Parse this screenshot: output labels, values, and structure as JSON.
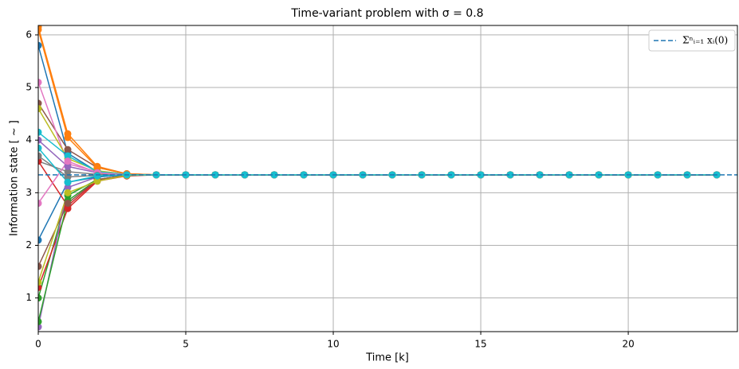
{
  "chart_data": {
    "type": "line",
    "title": "Time-variant problem with σ = 0.8",
    "x_label": "Time [k]",
    "y_label": "Information state [ ~ ]",
    "x": [
      0,
      1,
      2,
      3,
      4,
      5,
      6,
      7,
      8,
      9,
      10,
      11,
      12,
      13,
      14,
      15,
      16,
      17,
      18,
      19,
      20,
      21,
      22,
      23
    ],
    "xlim": [
      0,
      23.7
    ],
    "xticks": [
      0,
      5,
      10,
      15,
      20
    ],
    "ylim": [
      0.36,
      6.18
    ],
    "yticks": [
      1,
      2,
      3,
      4,
      5,
      6
    ],
    "grid": true,
    "legend": "upper right",
    "reference": {
      "name": "Σⁿᵢ₌₁ xᵢ(0)",
      "value": 3.34,
      "color": "#1f77b4",
      "style": "dashed"
    },
    "series": [
      {
        "color": "#1f77b4",
        "values": [
          5.8,
          3.75,
          3.4,
          3.35,
          3.34,
          3.34,
          3.34,
          3.34,
          3.34,
          3.34,
          3.34,
          3.34,
          3.34,
          3.34,
          3.34,
          3.34,
          3.34,
          3.34,
          3.34,
          3.34,
          3.34,
          3.34,
          3.34,
          3.34
        ]
      },
      {
        "color": "#ff7f0e",
        "values": [
          6.15,
          4.12,
          3.5,
          3.36,
          3.34,
          3.34,
          3.34,
          3.34,
          3.34,
          3.34,
          3.34,
          3.34,
          3.34,
          3.34,
          3.34,
          3.34,
          3.34,
          3.34,
          3.34,
          3.34,
          3.34,
          3.34,
          3.34,
          3.34
        ]
      },
      {
        "color": "#2ca02c",
        "values": [
          1.0,
          2.95,
          3.25,
          3.33,
          3.34,
          3.34,
          3.34,
          3.34,
          3.34,
          3.34,
          3.34,
          3.34,
          3.34,
          3.34,
          3.34,
          3.34,
          3.34,
          3.34,
          3.34,
          3.34,
          3.34,
          3.34,
          3.34,
          3.34
        ]
      },
      {
        "color": "#d62728",
        "values": [
          1.2,
          2.7,
          3.22,
          3.32,
          3.34,
          3.34,
          3.34,
          3.34,
          3.34,
          3.34,
          3.34,
          3.34,
          3.34,
          3.34,
          3.34,
          3.34,
          3.34,
          3.34,
          3.34,
          3.34,
          3.34,
          3.34,
          3.34,
          3.34
        ]
      },
      {
        "color": "#9467bd",
        "values": [
          0.45,
          3.1,
          3.3,
          3.34,
          3.34,
          3.34,
          3.34,
          3.34,
          3.34,
          3.34,
          3.34,
          3.34,
          3.34,
          3.34,
          3.34,
          3.34,
          3.34,
          3.34,
          3.34,
          3.34,
          3.34,
          3.34,
          3.34,
          3.34
        ]
      },
      {
        "color": "#8c564b",
        "values": [
          4.7,
          3.82,
          3.48,
          3.36,
          3.34,
          3.34,
          3.34,
          3.34,
          3.34,
          3.34,
          3.34,
          3.34,
          3.34,
          3.34,
          3.34,
          3.34,
          3.34,
          3.34,
          3.34,
          3.34,
          3.34,
          3.34,
          3.34,
          3.34
        ]
      },
      {
        "color": "#e377c2",
        "values": [
          5.1,
          3.55,
          3.4,
          3.35,
          3.34,
          3.34,
          3.34,
          3.34,
          3.34,
          3.34,
          3.34,
          3.34,
          3.34,
          3.34,
          3.34,
          3.34,
          3.34,
          3.34,
          3.34,
          3.34,
          3.34,
          3.34,
          3.34,
          3.34
        ]
      },
      {
        "color": "#7f7f7f",
        "values": [
          3.6,
          3.4,
          3.35,
          3.34,
          3.34,
          3.34,
          3.34,
          3.34,
          3.34,
          3.34,
          3.34,
          3.34,
          3.34,
          3.34,
          3.34,
          3.34,
          3.34,
          3.34,
          3.34,
          3.34,
          3.34,
          3.34,
          3.34,
          3.34
        ]
      },
      {
        "color": "#bcbd22",
        "values": [
          4.6,
          3.65,
          3.42,
          3.35,
          3.34,
          3.34,
          3.34,
          3.34,
          3.34,
          3.34,
          3.34,
          3.34,
          3.34,
          3.34,
          3.34,
          3.34,
          3.34,
          3.34,
          3.34,
          3.34,
          3.34,
          3.34,
          3.34,
          3.34
        ]
      },
      {
        "color": "#17becf",
        "values": [
          4.15,
          3.7,
          3.4,
          3.35,
          3.34,
          3.34,
          3.34,
          3.34,
          3.34,
          3.34,
          3.34,
          3.34,
          3.34,
          3.34,
          3.34,
          3.34,
          3.34,
          3.34,
          3.34,
          3.34,
          3.34,
          3.34,
          3.34,
          3.34
        ]
      },
      {
        "color": "#1f77b4",
        "values": [
          2.1,
          3.2,
          3.3,
          3.34,
          3.34,
          3.34,
          3.34,
          3.34,
          3.34,
          3.34,
          3.34,
          3.34,
          3.34,
          3.34,
          3.34,
          3.34,
          3.34,
          3.34,
          3.34,
          3.34,
          3.34,
          3.34,
          3.34,
          3.34
        ]
      },
      {
        "color": "#ff7f0e",
        "values": [
          6.1,
          4.05,
          3.48,
          3.36,
          3.34,
          3.34,
          3.34,
          3.34,
          3.34,
          3.34,
          3.34,
          3.34,
          3.34,
          3.34,
          3.34,
          3.34,
          3.34,
          3.34,
          3.34,
          3.34,
          3.34,
          3.34,
          3.34,
          3.34
        ]
      },
      {
        "color": "#2ca02c",
        "values": [
          0.55,
          2.85,
          3.25,
          3.33,
          3.34,
          3.34,
          3.34,
          3.34,
          3.34,
          3.34,
          3.34,
          3.34,
          3.34,
          3.34,
          3.34,
          3.34,
          3.34,
          3.34,
          3.34,
          3.34,
          3.34,
          3.34,
          3.34,
          3.34
        ]
      },
      {
        "color": "#d62728",
        "values": [
          3.6,
          2.75,
          3.24,
          3.33,
          3.34,
          3.34,
          3.34,
          3.34,
          3.34,
          3.34,
          3.34,
          3.34,
          3.34,
          3.34,
          3.34,
          3.34,
          3.34,
          3.34,
          3.34,
          3.34,
          3.34,
          3.34,
          3.34,
          3.34
        ]
      },
      {
        "color": "#9467bd",
        "values": [
          4.0,
          3.5,
          3.38,
          3.34,
          3.34,
          3.34,
          3.34,
          3.34,
          3.34,
          3.34,
          3.34,
          3.34,
          3.34,
          3.34,
          3.34,
          3.34,
          3.34,
          3.34,
          3.34,
          3.34,
          3.34,
          3.34,
          3.34,
          3.34
        ]
      },
      {
        "color": "#8c564b",
        "values": [
          1.6,
          2.8,
          3.25,
          3.33,
          3.34,
          3.34,
          3.34,
          3.34,
          3.34,
          3.34,
          3.34,
          3.34,
          3.34,
          3.34,
          3.34,
          3.34,
          3.34,
          3.34,
          3.34,
          3.34,
          3.34,
          3.34,
          3.34,
          3.34
        ]
      },
      {
        "color": "#e377c2",
        "values": [
          2.8,
          3.6,
          3.38,
          3.34,
          3.34,
          3.34,
          3.34,
          3.34,
          3.34,
          3.34,
          3.34,
          3.34,
          3.34,
          3.34,
          3.34,
          3.34,
          3.34,
          3.34,
          3.34,
          3.34,
          3.34,
          3.34,
          3.34,
          3.34
        ]
      },
      {
        "color": "#7f7f7f",
        "values": [
          3.7,
          3.3,
          3.33,
          3.34,
          3.34,
          3.34,
          3.34,
          3.34,
          3.34,
          3.34,
          3.34,
          3.34,
          3.34,
          3.34,
          3.34,
          3.34,
          3.34,
          3.34,
          3.34,
          3.34,
          3.34,
          3.34,
          3.34,
          3.34
        ]
      },
      {
        "color": "#bcbd22",
        "values": [
          1.3,
          3.0,
          3.22,
          3.33,
          3.34,
          3.34,
          3.34,
          3.34,
          3.34,
          3.34,
          3.34,
          3.34,
          3.34,
          3.34,
          3.34,
          3.34,
          3.34,
          3.34,
          3.34,
          3.34,
          3.34,
          3.34,
          3.34,
          3.34
        ]
      },
      {
        "color": "#17becf",
        "values": [
          3.85,
          3.2,
          3.32,
          3.34,
          3.34,
          3.34,
          3.34,
          3.34,
          3.34,
          3.34,
          3.34,
          3.34,
          3.34,
          3.34,
          3.34,
          3.34,
          3.34,
          3.34,
          3.34,
          3.34,
          3.34,
          3.34,
          3.34,
          3.34
        ]
      }
    ]
  }
}
